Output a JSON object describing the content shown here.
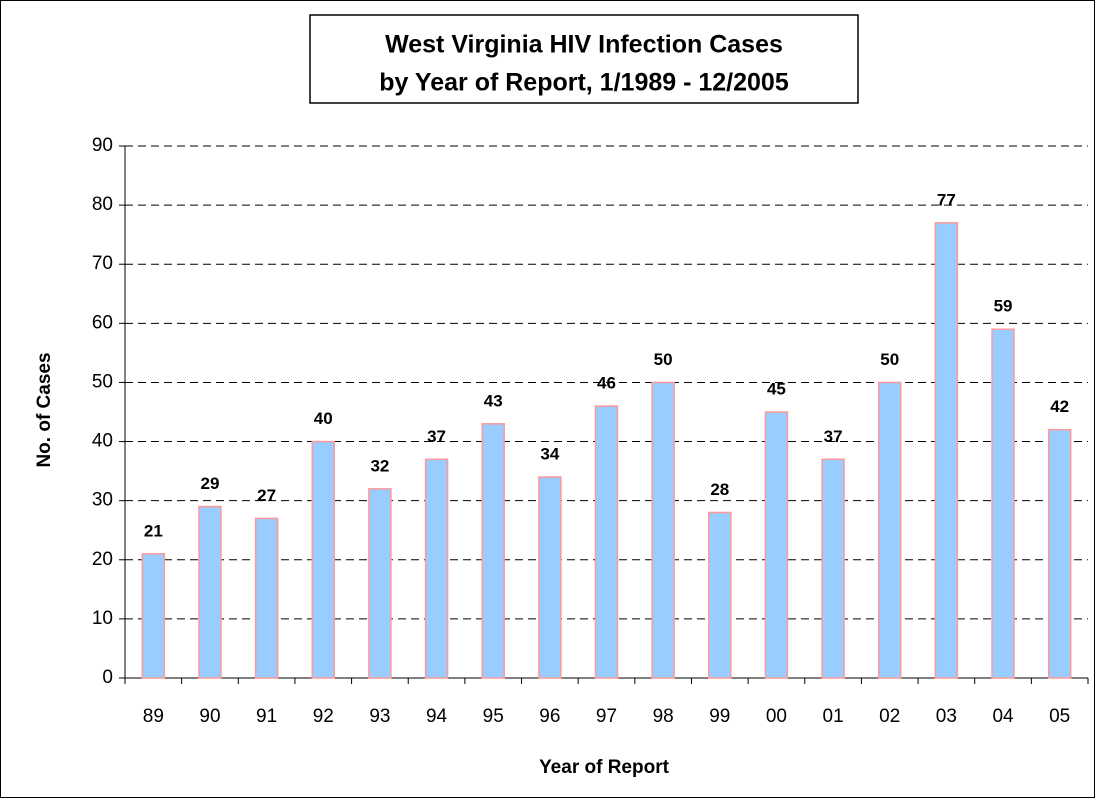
{
  "chart_data": {
    "type": "bar",
    "title": [
      "West Virginia HIV Infection Cases",
      "by Year of Report, 1/1989 - 12/2005"
    ],
    "x_label": "Year of Report",
    "y_label": "No. of Cases",
    "categories": [
      "89",
      "90",
      "91",
      "92",
      "93",
      "94",
      "95",
      "96",
      "97",
      "98",
      "99",
      "00",
      "01",
      "02",
      "03",
      "04",
      "05"
    ],
    "values": [
      21,
      29,
      27,
      40,
      32,
      37,
      43,
      34,
      46,
      50,
      28,
      45,
      37,
      50,
      77,
      59,
      42
    ],
    "color": "#99ccff",
    "edge_color": "#ff9999",
    "ylim": [
      0,
      90
    ],
    "yticks": [
      0,
      10,
      20,
      30,
      40,
      50,
      60,
      70,
      80,
      90
    ],
    "grid": true
  }
}
